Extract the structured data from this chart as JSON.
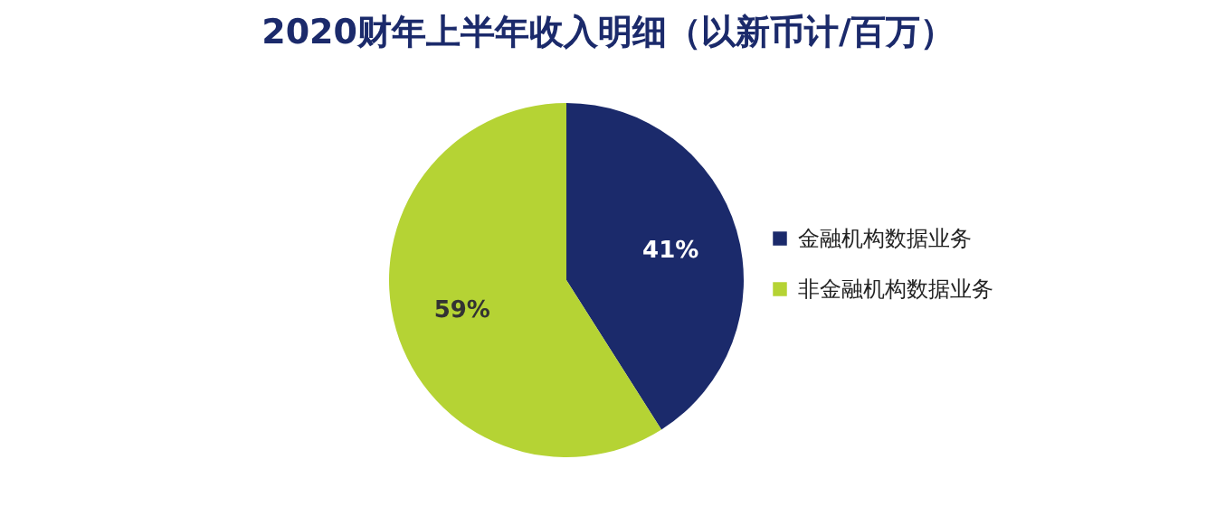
{
  "chart_data": {
    "type": "pie",
    "title": "2020财年上半年收入明细（以新币计/百万）",
    "categories": [
      "金融机构数据业务",
      "非金融机构数据业务"
    ],
    "values": [
      41,
      59
    ],
    "colors": [
      "#1b2a6b",
      "#b5d334"
    ],
    "value_labels": [
      "41%",
      "59%"
    ],
    "legend": "right"
  }
}
